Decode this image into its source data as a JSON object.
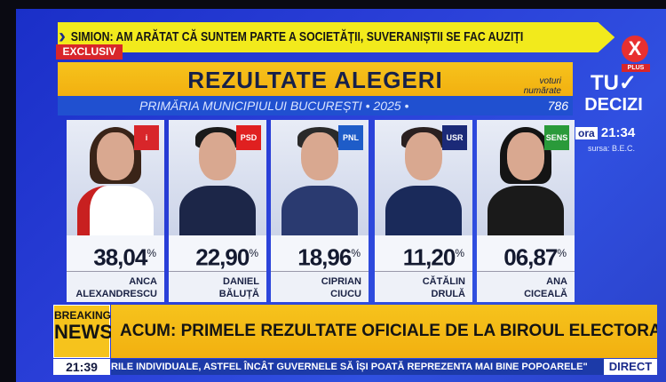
{
  "ticker_top": "SIMION: AM ARĂTAT CĂ SUNTEM PARTE A SOCIETĂȚII, SUVERANIȘTII SE FAC AUZIȚI",
  "exclusive_label": "EXCLUSIV",
  "channel_logo": {
    "letter": "X",
    "label": "PLUS"
  },
  "panel": {
    "title": "REZULTATE ALEGERI",
    "subtitle": "PRIMĂRIA MUNICIPIULUI BUCUREȘTI • 2025 •",
    "votes_label_1": "voturi",
    "votes_label_2": "numărate",
    "votes_count": "786"
  },
  "show_logo": {
    "line1": "TU✓",
    "line2": "DECIZI"
  },
  "clock_panel": {
    "label": "ora",
    "time": "21:34",
    "source": "sursa: B.E.C."
  },
  "candidates": [
    {
      "first": "ANCA",
      "last": "ALEXANDRESCU",
      "percent": "38,04",
      "badge": "i",
      "badge_color": "#d8262a",
      "hair": "#3a2418",
      "suit": "#ffffff"
    },
    {
      "first": "DANIEL",
      "last": "BĂLUȚĂ",
      "percent": "22,90",
      "badge": "PSD",
      "badge_color": "#e02020",
      "hair": "#1a1a1a",
      "suit": "#1c2648"
    },
    {
      "first": "CIPRIAN",
      "last": "CIUCU",
      "percent": "18,96",
      "badge": "PNL",
      "badge_color": "#1e5cc8",
      "hair": "#2a2a2a",
      "suit": "#2a3a70"
    },
    {
      "first": "CĂTĂLIN",
      "last": "DRULĂ",
      "percent": "11,20",
      "badge": "USR",
      "badge_color": "#1b2a78",
      "hair": "#2a2020",
      "suit": "#1a2a5a"
    },
    {
      "first": "ANA",
      "last": "CICEALĂ",
      "percent": "06,87",
      "badge": "SENS",
      "badge_color": "#2a9a3a",
      "hair": "#141414",
      "suit": "#1a1a1a"
    }
  ],
  "percent_sign": "%",
  "breaking": {
    "line1": "BREAKING",
    "line2": "NEWS",
    "headline": "ACUM: PRIMELE REZULTATE OFICIALE DE LA BIROUL ELECTORAL, DATE DECISIVE"
  },
  "bottom": {
    "time": "21:39",
    "crawl": "RILE INDIVIDUALE, ASTFEL ÎNCÂT GUVERNELE SĂ ÎȘI POATĂ REPREZENTA MAI BINE POPOARELE\"",
    "live": "DIRECT"
  }
}
